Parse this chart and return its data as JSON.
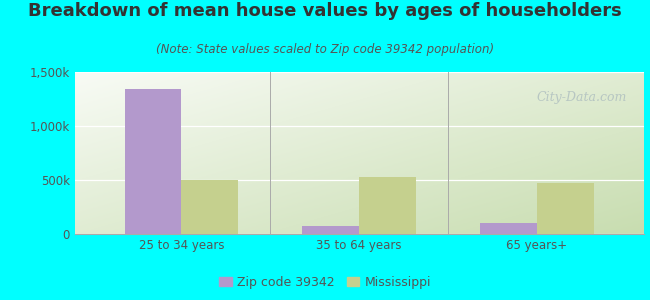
{
  "title": "Breakdown of mean house values by ages of householders",
  "subtitle": "(Note: State values scaled to Zip code 39342 population)",
  "categories": [
    "25 to 34 years",
    "35 to 64 years",
    "65 years+"
  ],
  "zip_values": [
    1340000,
    75000,
    100000
  ],
  "state_values": [
    500000,
    530000,
    475000
  ],
  "zip_color": "#b399cc",
  "state_color": "#c5d08e",
  "background_outer": "#00ffff",
  "background_inner_left": "#c8ddb0",
  "background_inner_right": "#f5faf0",
  "background_inner_top": "#f8fbf5",
  "ylim": [
    0,
    1500000
  ],
  "yticks": [
    0,
    500000,
    1000000,
    1500000
  ],
  "ytick_labels": [
    "0",
    "500k",
    "1,000k",
    "1,500k"
  ],
  "bar_width": 0.32,
  "legend_zip_label": "Zip code 39342",
  "legend_state_label": "Mississippi",
  "watermark": "City-Data.com",
  "title_fontsize": 13,
  "subtitle_fontsize": 8.5,
  "tick_fontsize": 8.5,
  "legend_fontsize": 9
}
